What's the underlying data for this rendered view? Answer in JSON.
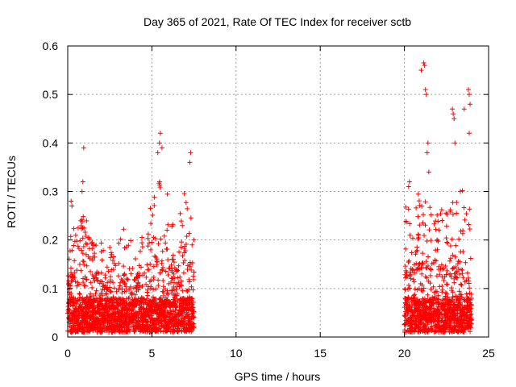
{
  "chart_data": {
    "type": "scatter",
    "title": "Day 365 of 2021, Rate Of TEC Index for receiver sctb",
    "xlabel": "GPS time / hours",
    "ylabel": "ROTI / TECUs",
    "xlim": [
      0,
      25
    ],
    "ylim": [
      0,
      0.6
    ],
    "xticks": [
      0,
      5,
      10,
      15,
      20,
      25
    ],
    "yticks": [
      0,
      0.1,
      0.2,
      0.3,
      0.4,
      0.5,
      0.6
    ],
    "xtick_labels": [
      "0",
      "5",
      "10",
      "15",
      "20",
      "25"
    ],
    "ytick_labels": [
      "0",
      "0.1",
      "0.2",
      "0.3",
      "0.4",
      "0.5",
      "0.6"
    ],
    "grid": true,
    "marker": "+",
    "color": "#ff0000",
    "data_segments": [
      {
        "x_start": 0.0,
        "x_end": 7.5
      },
      {
        "x_start": 20.0,
        "x_end": 24.0
      }
    ],
    "notable_points": [
      {
        "x": 0.2,
        "y": 0.28
      },
      {
        "x": 0.25,
        "y": 0.27
      },
      {
        "x": 0.95,
        "y": 0.39
      },
      {
        "x": 0.9,
        "y": 0.32
      },
      {
        "x": 0.85,
        "y": 0.3
      },
      {
        "x": 5.35,
        "y": 0.38
      },
      {
        "x": 5.5,
        "y": 0.42
      },
      {
        "x": 5.6,
        "y": 0.39
      },
      {
        "x": 5.45,
        "y": 0.4
      },
      {
        "x": 7.3,
        "y": 0.38
      },
      {
        "x": 7.25,
        "y": 0.36
      },
      {
        "x": 21.15,
        "y": 0.565
      },
      {
        "x": 21.2,
        "y": 0.56
      },
      {
        "x": 21.0,
        "y": 0.55
      },
      {
        "x": 21.25,
        "y": 0.51
      },
      {
        "x": 21.3,
        "y": 0.5
      },
      {
        "x": 21.4,
        "y": 0.4
      },
      {
        "x": 21.35,
        "y": 0.38
      },
      {
        "x": 21.45,
        "y": 0.34
      },
      {
        "x": 22.85,
        "y": 0.47
      },
      {
        "x": 22.9,
        "y": 0.46
      },
      {
        "x": 22.95,
        "y": 0.45
      },
      {
        "x": 23.0,
        "y": 0.4
      },
      {
        "x": 23.55,
        "y": 0.47
      },
      {
        "x": 23.8,
        "y": 0.51
      },
      {
        "x": 23.85,
        "y": 0.5
      },
      {
        "x": 23.9,
        "y": 0.48
      },
      {
        "x": 23.85,
        "y": 0.42
      },
      {
        "x": 20.25,
        "y": 0.31
      },
      {
        "x": 20.3,
        "y": 0.32
      }
    ],
    "envelope": [
      {
        "x": 0.0,
        "y": 0.2
      },
      {
        "x": 0.5,
        "y": 0.22
      },
      {
        "x": 1.0,
        "y": 0.25
      },
      {
        "x": 1.5,
        "y": 0.22
      },
      {
        "x": 2.0,
        "y": 0.2
      },
      {
        "x": 2.5,
        "y": 0.18
      },
      {
        "x": 3.0,
        "y": 0.2
      },
      {
        "x": 3.5,
        "y": 0.22
      },
      {
        "x": 4.0,
        "y": 0.21
      },
      {
        "x": 4.5,
        "y": 0.23
      },
      {
        "x": 5.0,
        "y": 0.27
      },
      {
        "x": 5.5,
        "y": 0.32
      },
      {
        "x": 6.0,
        "y": 0.28
      },
      {
        "x": 6.5,
        "y": 0.26
      },
      {
        "x": 7.0,
        "y": 0.3
      },
      {
        "x": 7.5,
        "y": 0.2
      },
      {
        "x": 20.0,
        "y": 0.26
      },
      {
        "x": 20.5,
        "y": 0.28
      },
      {
        "x": 21.0,
        "y": 0.3
      },
      {
        "x": 21.5,
        "y": 0.28
      },
      {
        "x": 22.0,
        "y": 0.27
      },
      {
        "x": 22.5,
        "y": 0.25
      },
      {
        "x": 23.0,
        "y": 0.28
      },
      {
        "x": 23.5,
        "y": 0.3
      },
      {
        "x": 24.0,
        "y": 0.25
      }
    ],
    "baseline_range": [
      0.01,
      0.06
    ]
  }
}
